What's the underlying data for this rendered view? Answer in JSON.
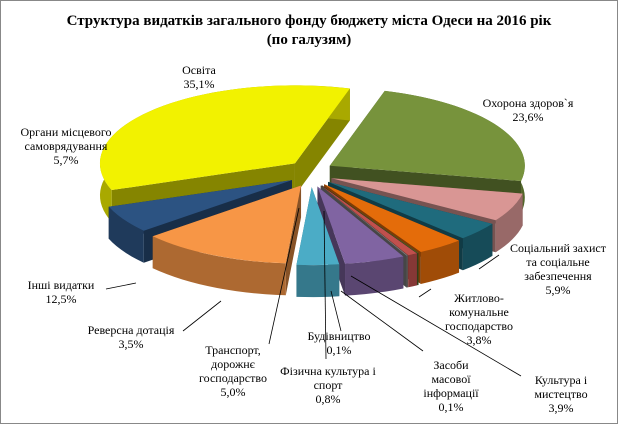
{
  "chart_data": {
    "type": "pie3d",
    "title": "Структура видатків загального фонду бюджету міста Одеси на 2016 рік",
    "subtitle": "(по галузям)",
    "categories": [
      "Освіта",
      "Охорона здоров`я",
      "Соціальний захист та соціальне забезпечення",
      "Житлово-комунальне господарство",
      "Культура і мистецтво",
      "Засоби масової інформації",
      "Фізична культура і спорт",
      "Будівництво",
      "Транспорт, дорожнє господарство",
      "Реверсна дотація",
      "Інші видатки",
      "Органи місцевого самоврядування"
    ],
    "values": [
      35.1,
      23.6,
      5.9,
      3.8,
      3.9,
      0.1,
      0.8,
      0.1,
      5.0,
      3.5,
      12.5,
      5.7
    ],
    "value_labels": [
      "35,1%",
      "23,6%",
      "5,9%",
      "3,8%",
      "3,9%",
      "0,1%",
      "0,8%",
      "0,1%",
      "5,0%",
      "3,5%",
      "12,5%",
      "5,7%"
    ],
    "colors": [
      "#f2f200",
      "#77933c",
      "#d99694",
      "#1f6b7d",
      "#e46c0a",
      "#4f6228",
      "#c0504d",
      "#7f7f7f",
      "#8064a2",
      "#4bacc6",
      "#f79646",
      "#2c5382"
    ]
  }
}
